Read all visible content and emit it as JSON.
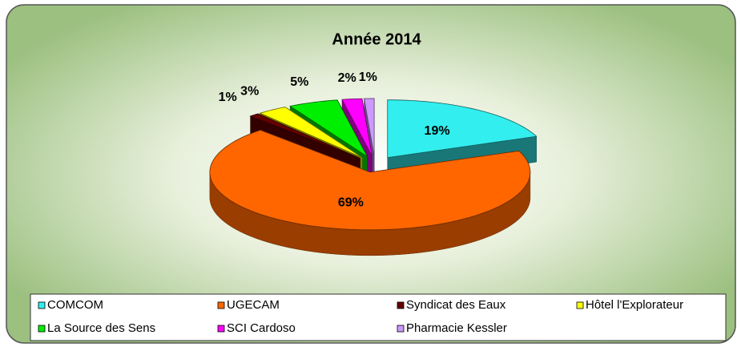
{
  "chart_data": {
    "type": "pie",
    "title": "Année 2014",
    "categories": [
      "COMCOM",
      "UGECAM",
      "Syndicat des Eaux",
      "Hôtel l'Explorateur",
      "La Source des Sens",
      "SCI Cardoso",
      "Pharmacie Kessler"
    ],
    "values": [
      19,
      69,
      1,
      3,
      5,
      2,
      1
    ],
    "value_labels": [
      "19%",
      "69%",
      "1%",
      "3%",
      "5%",
      "2%",
      "1%"
    ],
    "colors": [
      "#33eeee",
      "#ff6600",
      "#660000",
      "#ffff00",
      "#00ee00",
      "#ff00ff",
      "#cc99ff"
    ],
    "legend": "bottom"
  }
}
